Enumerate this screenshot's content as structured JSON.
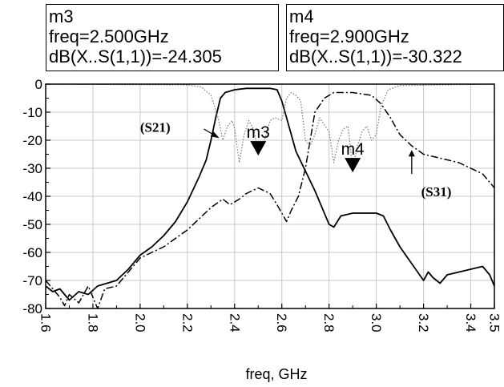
{
  "markers": [
    {
      "name": "m3",
      "freq_text": "freq=2.500GHz",
      "value_text": "dB(X..S(1,1))=-24.305",
      "freq": 2.5,
      "value": -24.305
    },
    {
      "name": "m4",
      "freq_text": "freq=2.900GHz",
      "value_text": "dB(X..S(1,1))=-30.322",
      "freq": 2.9,
      "value": -30.322
    }
  ],
  "chart_data": {
    "type": "line",
    "title": "",
    "xlabel": "freq, GHz",
    "ylabel": "",
    "xlim": [
      1.6,
      3.5
    ],
    "ylim": [
      -80,
      0
    ],
    "x_ticks": [
      "1.6",
      "1.8",
      "2.0",
      "2.2",
      "2.4",
      "2.6",
      "2.8",
      "3.0",
      "3.2",
      "3.4",
      "3.5"
    ],
    "x_tick_values": [
      1.6,
      1.8,
      2.0,
      2.2,
      2.4,
      2.6,
      2.8,
      3.0,
      3.2,
      3.4,
      3.5
    ],
    "y_ticks": [
      "0",
      "-10",
      "-20",
      "-30",
      "-40",
      "-50",
      "-60",
      "-70",
      "-80"
    ],
    "y_tick_values": [
      0,
      -10,
      -20,
      -30,
      -40,
      -50,
      -60,
      -70,
      -80
    ],
    "grid": true,
    "series": [
      {
        "name": "S21",
        "style": "solid",
        "points": [
          [
            1.6,
            -72
          ],
          [
            1.63,
            -74
          ],
          [
            1.66,
            -73
          ],
          [
            1.7,
            -77
          ],
          [
            1.74,
            -74
          ],
          [
            1.78,
            -75
          ],
          [
            1.82,
            -72
          ],
          [
            1.86,
            -71
          ],
          [
            1.9,
            -70
          ],
          [
            1.95,
            -66
          ],
          [
            2.0,
            -61
          ],
          [
            2.05,
            -58
          ],
          [
            2.1,
            -54
          ],
          [
            2.15,
            -49
          ],
          [
            2.2,
            -42
          ],
          [
            2.25,
            -33
          ],
          [
            2.28,
            -27
          ],
          [
            2.3,
            -20
          ],
          [
            2.32,
            -12
          ],
          [
            2.34,
            -5
          ],
          [
            2.36,
            -3
          ],
          [
            2.4,
            -2
          ],
          [
            2.45,
            -1.5
          ],
          [
            2.5,
            -1.5
          ],
          [
            2.55,
            -1.5
          ],
          [
            2.58,
            -2
          ],
          [
            2.6,
            -6
          ],
          [
            2.63,
            -15
          ],
          [
            2.66,
            -24
          ],
          [
            2.7,
            -31
          ],
          [
            2.74,
            -38
          ],
          [
            2.78,
            -46
          ],
          [
            2.8,
            -50
          ],
          [
            2.82,
            -51
          ],
          [
            2.85,
            -47
          ],
          [
            2.9,
            -46
          ],
          [
            2.95,
            -46
          ],
          [
            3.0,
            -46
          ],
          [
            3.03,
            -47
          ],
          [
            3.06,
            -52
          ],
          [
            3.1,
            -58
          ],
          [
            3.15,
            -64
          ],
          [
            3.2,
            -70
          ],
          [
            3.22,
            -67
          ],
          [
            3.24,
            -69
          ],
          [
            3.27,
            -71
          ],
          [
            3.3,
            -68
          ],
          [
            3.35,
            -67
          ],
          [
            3.4,
            -66
          ],
          [
            3.45,
            -65
          ],
          [
            3.48,
            -68
          ],
          [
            3.5,
            -72
          ]
        ]
      },
      {
        "name": "S31",
        "style": "dashdot",
        "points": [
          [
            1.6,
            -70
          ],
          [
            1.63,
            -73
          ],
          [
            1.66,
            -76
          ],
          [
            1.68,
            -79
          ],
          [
            1.7,
            -75
          ],
          [
            1.74,
            -78
          ],
          [
            1.78,
            -72
          ],
          [
            1.82,
            -80
          ],
          [
            1.85,
            -73
          ],
          [
            1.9,
            -72
          ],
          [
            1.95,
            -67
          ],
          [
            2.0,
            -62
          ],
          [
            2.05,
            -60
          ],
          [
            2.1,
            -58
          ],
          [
            2.15,
            -55
          ],
          [
            2.2,
            -52
          ],
          [
            2.25,
            -48
          ],
          [
            2.3,
            -44
          ],
          [
            2.35,
            -41
          ],
          [
            2.38,
            -43
          ],
          [
            2.42,
            -41
          ],
          [
            2.45,
            -39
          ],
          [
            2.5,
            -37
          ],
          [
            2.55,
            -39
          ],
          [
            2.58,
            -43
          ],
          [
            2.6,
            -46
          ],
          [
            2.62,
            -49
          ],
          [
            2.64,
            -45
          ],
          [
            2.67,
            -40
          ],
          [
            2.7,
            -30
          ],
          [
            2.72,
            -20
          ],
          [
            2.74,
            -10
          ],
          [
            2.78,
            -5
          ],
          [
            2.82,
            -3
          ],
          [
            2.9,
            -3
          ],
          [
            2.98,
            -4
          ],
          [
            3.02,
            -7
          ],
          [
            3.06,
            -12
          ],
          [
            3.1,
            -18
          ],
          [
            3.15,
            -22
          ],
          [
            3.2,
            -25
          ],
          [
            3.25,
            -26
          ],
          [
            3.3,
            -27
          ],
          [
            3.35,
            -28
          ],
          [
            3.4,
            -30
          ],
          [
            3.45,
            -32
          ],
          [
            3.5,
            -37
          ]
        ]
      },
      {
        "name": "S11",
        "style": "dotted",
        "points": [
          [
            1.6,
            0
          ],
          [
            2.2,
            -0.3
          ],
          [
            2.26,
            -1
          ],
          [
            2.3,
            -4
          ],
          [
            2.33,
            -12
          ],
          [
            2.35,
            -20
          ],
          [
            2.37,
            -15
          ],
          [
            2.39,
            -13
          ],
          [
            2.4,
            -16
          ],
          [
            2.42,
            -28
          ],
          [
            2.44,
            -18
          ],
          [
            2.46,
            -13
          ],
          [
            2.48,
            -16
          ],
          [
            2.5,
            -24
          ],
          [
            2.52,
            -22
          ],
          [
            2.55,
            -13
          ],
          [
            2.57,
            -12
          ],
          [
            2.6,
            -13
          ],
          [
            2.62,
            -5
          ],
          [
            2.64,
            -3
          ],
          [
            2.66,
            -4
          ],
          [
            2.68,
            -6
          ],
          [
            2.7,
            -20
          ],
          [
            2.72,
            -22
          ],
          [
            2.74,
            -18
          ],
          [
            2.76,
            -12
          ],
          [
            2.8,
            -17
          ],
          [
            2.82,
            -28
          ],
          [
            2.84,
            -20
          ],
          [
            2.86,
            -16
          ],
          [
            2.88,
            -15
          ],
          [
            2.9,
            -30
          ],
          [
            2.92,
            -22
          ],
          [
            2.94,
            -17
          ],
          [
            2.96,
            -15
          ],
          [
            2.98,
            -20
          ],
          [
            3.0,
            -18
          ],
          [
            3.02,
            -8
          ],
          [
            3.05,
            -2
          ],
          [
            3.1,
            -0.5
          ],
          [
            3.5,
            0
          ]
        ]
      }
    ],
    "annotations": [
      {
        "text": "(S21)",
        "series": "S21",
        "x": 2.0,
        "y": -17
      },
      {
        "text": "(S31)",
        "series": "S31",
        "x": 3.19,
        "y": -40
      }
    ]
  }
}
